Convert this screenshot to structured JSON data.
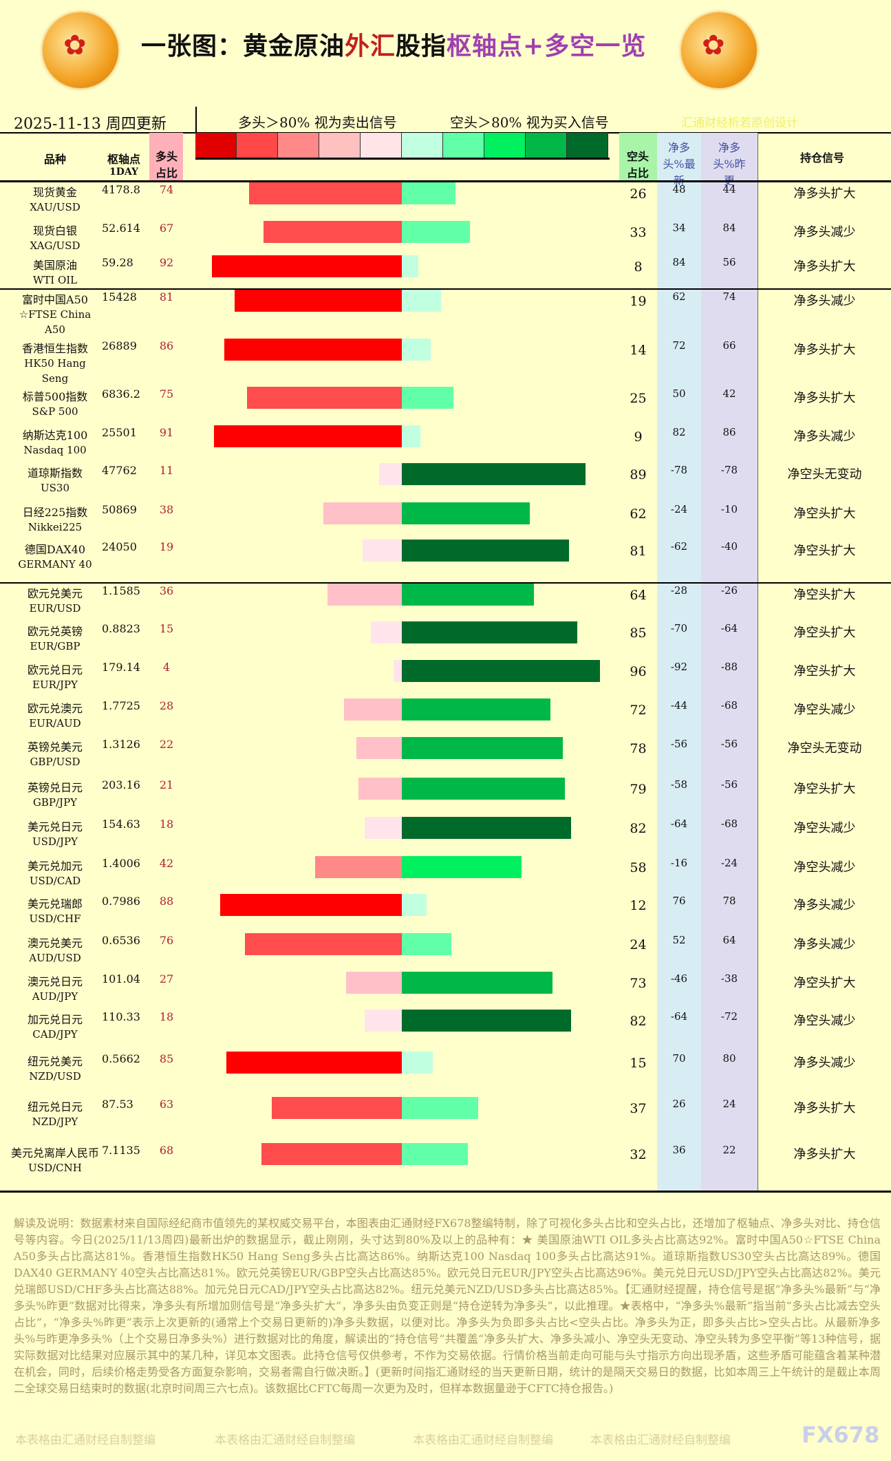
{
  "header": {
    "title_a": "一张图：黄金原油",
    "title_b": "外汇",
    "title_c": "股指",
    "title_d": "枢轴点+多空一览",
    "date": "2025-11-13 周四更新",
    "long_note": "多头＞80% 视为卖出信号",
    "short_note": "空头＞80% 视为买入信号",
    "credit": "汇通财经析若原创设计"
  },
  "columns": {
    "name": "品种",
    "pivot": "枢轴点",
    "pivot_sub": "1DAY",
    "long": "多头占比",
    "short": "空头占比",
    "net_new": "净多头%最新",
    "net_prev": "净多头%昨更",
    "signal": "持仓信号"
  },
  "legend_colors": [
    "#e00000",
    "#ff4848",
    "#ff8888",
    "#ffc0c0",
    "#ffe4e8",
    "#c0ffe0",
    "#60ffa8",
    "#00f060",
    "#00b848",
    "#006a2a"
  ],
  "rows": [
    {
      "name": "现货黄金",
      "code": "XAU/USD",
      "pivot": "4178.8",
      "long": 74,
      "short": 26,
      "net_new": "48",
      "net_prev": "44",
      "signal": "净多头扩大"
    },
    {
      "name": "现货白银",
      "code": "XAG/USD",
      "pivot": "52.614",
      "long": 67,
      "short": 33,
      "net_new": "34",
      "net_prev": "84",
      "signal": "净多头减少"
    },
    {
      "name": "美国原油",
      "code": "WTI OIL",
      "pivot": "59.28",
      "long": 92,
      "short": 8,
      "net_new": "84",
      "net_prev": "56",
      "signal": "净多头扩大"
    },
    {
      "name": "富时中国A50",
      "code": "☆FTSE China A50",
      "pivot": "15428",
      "long": 81,
      "short": 19,
      "net_new": "62",
      "net_prev": "74",
      "signal": "净多头减少"
    },
    {
      "name": "香港恒生指数",
      "code": "HK50 Hang Seng",
      "pivot": "26889",
      "long": 86,
      "short": 14,
      "net_new": "72",
      "net_prev": "66",
      "signal": "净多头扩大"
    },
    {
      "name": "标普500指数",
      "code": "S&P 500",
      "pivot": "6836.2",
      "long": 75,
      "short": 25,
      "net_new": "50",
      "net_prev": "42",
      "signal": "净多头扩大"
    },
    {
      "name": "纳斯达克100",
      "code": "Nasdaq 100",
      "pivot": "25501",
      "long": 91,
      "short": 9,
      "net_new": "82",
      "net_prev": "86",
      "signal": "净多头减少"
    },
    {
      "name": "道琼斯指数",
      "code": "US30",
      "pivot": "47762",
      "long": 11,
      "short": 89,
      "net_new": "-78",
      "net_prev": "-78",
      "signal": "净空头无变动"
    },
    {
      "name": "日经225指数",
      "code": "Nikkei225",
      "pivot": "50869",
      "long": 38,
      "short": 62,
      "net_new": "-24",
      "net_prev": "-10",
      "signal": "净空头扩大"
    },
    {
      "name": "德国DAX40",
      "code": "GERMANY 40",
      "pivot": "24050",
      "long": 19,
      "short": 81,
      "net_new": "-62",
      "net_prev": "-40",
      "signal": "净空头扩大"
    },
    {
      "name": "欧元兑美元",
      "code": "EUR/USD",
      "pivot": "1.1585",
      "long": 36,
      "short": 64,
      "net_new": "-28",
      "net_prev": "-26",
      "signal": "净空头扩大"
    },
    {
      "name": "欧元兑英镑",
      "code": "EUR/GBP",
      "pivot": "0.8823",
      "long": 15,
      "short": 85,
      "net_new": "-70",
      "net_prev": "-64",
      "signal": "净空头扩大"
    },
    {
      "name": "欧元兑日元",
      "code": "EUR/JPY",
      "pivot": "179.14",
      "long": 4,
      "short": 96,
      "net_new": "-92",
      "net_prev": "-88",
      "signal": "净空头扩大"
    },
    {
      "name": "欧元兑澳元",
      "code": "EUR/AUD",
      "pivot": "1.7725",
      "long": 28,
      "short": 72,
      "net_new": "-44",
      "net_prev": "-68",
      "signal": "净空头减少"
    },
    {
      "name": "英镑兑美元",
      "code": "GBP/USD",
      "pivot": "1.3126",
      "long": 22,
      "short": 78,
      "net_new": "-56",
      "net_prev": "-56",
      "signal": "净空头无变动"
    },
    {
      "name": "英镑兑日元",
      "code": "GBP/JPY",
      "pivot": "203.16",
      "long": 21,
      "short": 79,
      "net_new": "-58",
      "net_prev": "-56",
      "signal": "净空头扩大"
    },
    {
      "name": "美元兑日元",
      "code": "USD/JPY",
      "pivot": "154.63",
      "long": 18,
      "short": 82,
      "net_new": "-64",
      "net_prev": "-68",
      "signal": "净空头减少"
    },
    {
      "name": "美元兑加元",
      "code": "USD/CAD",
      "pivot": "1.4006",
      "long": 42,
      "short": 58,
      "net_new": "-16",
      "net_prev": "-24",
      "signal": "净空头减少"
    },
    {
      "name": "美元兑瑞郎",
      "code": "USD/CHF",
      "pivot": "0.7986",
      "long": 88,
      "short": 12,
      "net_new": "76",
      "net_prev": "78",
      "signal": "净多头减少"
    },
    {
      "name": "澳元兑美元",
      "code": "AUD/USD",
      "pivot": "0.6536",
      "long": 76,
      "short": 24,
      "net_new": "52",
      "net_prev": "64",
      "signal": "净多头减少"
    },
    {
      "name": "澳元兑日元",
      "code": "AUD/JPY",
      "pivot": "101.04",
      "long": 27,
      "short": 73,
      "net_new": "-46",
      "net_prev": "-38",
      "signal": "净空头扩大"
    },
    {
      "name": "加元兑日元",
      "code": "CAD/JPY",
      "pivot": "110.33",
      "long": 18,
      "short": 82,
      "net_new": "-64",
      "net_prev": "-72",
      "signal": "净空头减少"
    },
    {
      "name": "纽元兑美元",
      "code": "NZD/USD",
      "pivot": "0.5662",
      "long": 85,
      "short": 15,
      "net_new": "70",
      "net_prev": "80",
      "signal": "净多头减少"
    },
    {
      "name": "纽元兑日元",
      "code": "NZD/JPY",
      "pivot": "87.53",
      "long": 63,
      "short": 37,
      "net_new": "26",
      "net_prev": "24",
      "signal": "净多头扩大"
    },
    {
      "name": "美元兑离岸人民币",
      "code": "USD/CNH",
      "pivot": "7.1135",
      "long": 68,
      "short": 32,
      "net_new": "36",
      "net_prev": "22",
      "signal": "净多头扩大"
    }
  ],
  "footer": {
    "text": "解读及说明：数据素材来自国际经纪商市值领先的某权威交易平台，本图表由汇通财经FX678整编特制，除了可视化多头占比和空头占比，还增加了枢轴点、净多头对比、持仓信号等内容。今日(2025/11/13周四)最新出炉的数据显示，截止刚刚，头寸达到80%及以上的品种有：★ 美国原油WTI OIL多头占比高达92%。富时中国A50☆FTSE China A50多头占比高达81%。香港恒生指数HK50 Hang Seng多头占比高达86%。纳斯达克100 Nasdaq 100多头占比高达91%。道琼斯指数US30空头占比高达89%。德国DAX40 GERMANY 40空头占比高达81%。欧元兑英镑EUR/GBP空头占比高达85%。欧元兑日元EUR/JPY空头占比高达96%。美元兑日元USD/JPY空头占比高达82%。美元兑瑞郎USD/CHF多头占比高达88%。加元兑日元CAD/JPY空头占比高达82%。纽元兑美元NZD/USD多头占比高达85%。【汇通财经提醒，持仓信号是据“净多头%最新”与“净多头%昨更”数据对比得来，净多头有所增加则信号是“净多头扩大”，净多头由负变正则是“持仓逆转为净多头”，以此推理。★表格中，“净多头%最新”指当前“多头占比减去空头占比”，“净多头%昨更”表示上次更新的(通常上个交易日更新的)净多头数据，以便对比。净多头为负即多头占比<空头占比。净多头为正，即多头占比>空头占比。从最新净多头%与昨更净多头%（上个交易日净多头%）进行数据对比的角度，解读出的“持仓信号”共覆盖“净多头扩大、净多头减小、净空头无变动、净空头转为多空平衡”等13种信号，据实际数据对比结果对应展示其中的某几种，详见本文图表。此持仓信号仅供参考，不作为交易依据。行情价格当前走向可能与头寸指示方向出现矛盾，这些矛盾可能蕴含着某种潜在机会，同时，后续价格走势受各方面复杂影响，交易者需自行做决断。】(更新时间指汇通财经的当天更新日期，统计的是隔天交易日的数据，比如本周三上午统计的是截止本周二全球交易日结束时的数据(北京时间周三六七点)。该数据比CFTC每周一次更为及时，但样本数据量逊于CFTC持仓报告。)",
    "watermark": "本表格由汇通财经自制整编",
    "brand": "FX678"
  }
}
